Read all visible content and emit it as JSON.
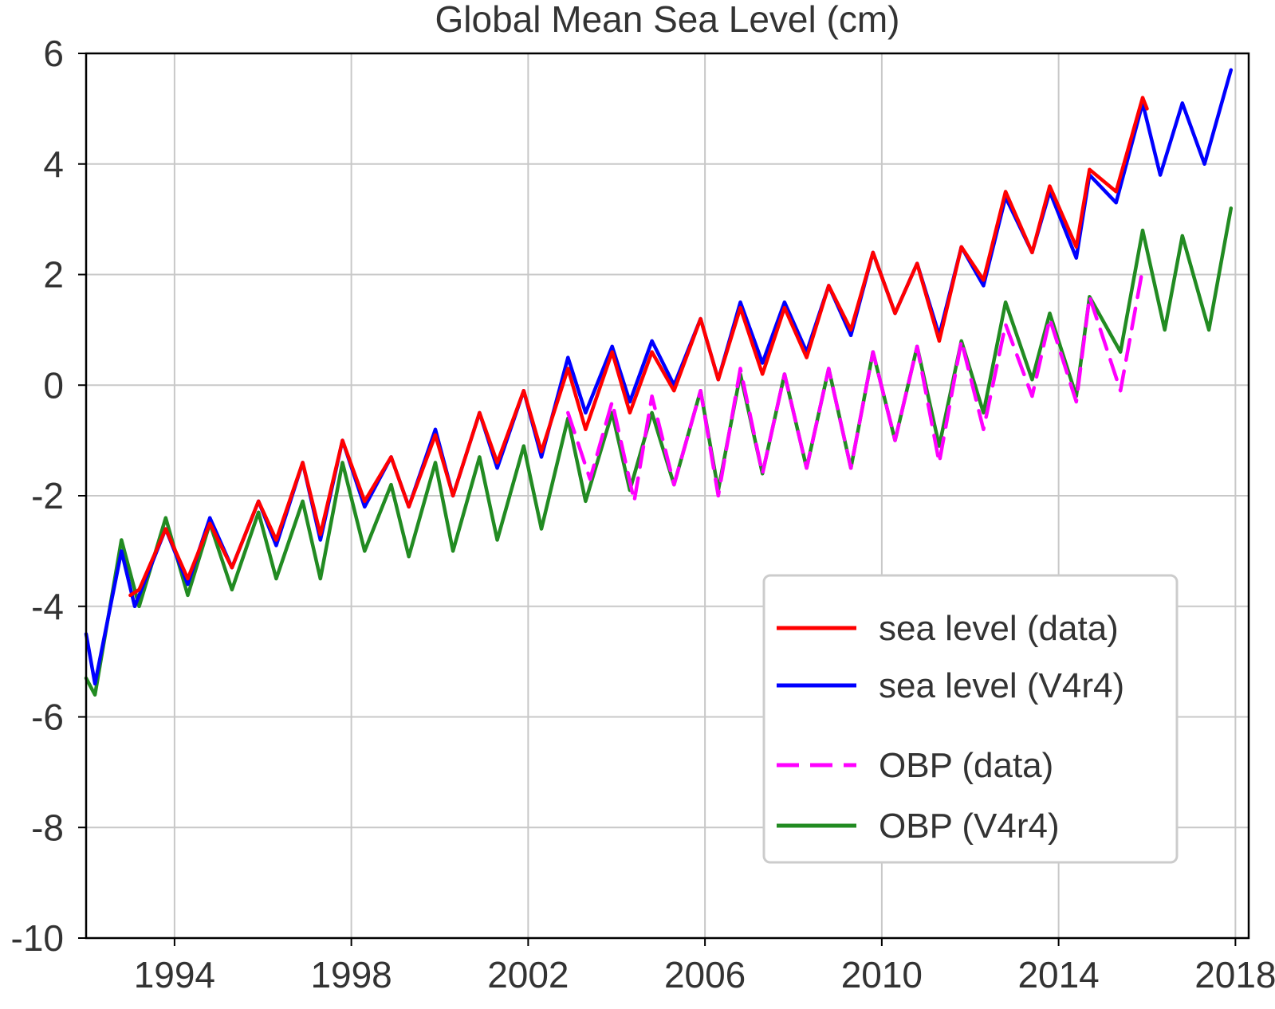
{
  "chart_data": {
    "type": "line",
    "title": "Global Mean Sea Level (cm)",
    "xlabel": "",
    "ylabel": "",
    "xlim": [
      1992.0,
      2018.3
    ],
    "ylim": [
      -10,
      6
    ],
    "x_ticks": [
      1994,
      1998,
      2002,
      2006,
      2010,
      2014,
      2018
    ],
    "x_tick_labels": [
      "1994",
      "1998",
      "2002",
      "2006",
      "2010",
      "2014",
      "2018"
    ],
    "y_ticks": [
      6,
      4,
      2,
      0,
      -2,
      -4,
      -6,
      -8,
      -10
    ],
    "y_tick_labels": [
      "6",
      "4",
      "2",
      "0",
      "-2",
      "-4",
      "-6",
      "-8",
      "-10"
    ],
    "grid": true,
    "legend_position": "lower-right",
    "series": [
      {
        "name": "sea level (data)",
        "color": "#ff0000",
        "dashed": false,
        "peaks": [
          [
            1993.0,
            -3.8
          ],
          [
            1993.8,
            -2.6
          ],
          [
            1994.8,
            -2.5
          ],
          [
            1995.9,
            -2.1
          ],
          [
            1996.9,
            -1.4
          ],
          [
            1997.8,
            -1.0
          ],
          [
            1998.9,
            -1.3
          ],
          [
            1999.9,
            -0.9
          ],
          [
            2000.9,
            -0.5
          ],
          [
            2001.9,
            -0.1
          ],
          [
            2002.9,
            0.3
          ],
          [
            2003.9,
            0.6
          ],
          [
            2004.8,
            0.6
          ],
          [
            2005.9,
            1.2
          ],
          [
            2006.8,
            1.4
          ],
          [
            2007.8,
            1.4
          ],
          [
            2008.8,
            1.8
          ],
          [
            2009.8,
            2.4
          ],
          [
            2010.8,
            2.2
          ],
          [
            2011.8,
            2.5
          ],
          [
            2012.8,
            3.5
          ],
          [
            2013.8,
            3.6
          ],
          [
            2014.7,
            3.9
          ],
          [
            2015.9,
            5.2
          ],
          [
            2016.0,
            5.0
          ]
        ],
        "troughs": [
          [
            1993.2,
            -3.7
          ],
          [
            1994.3,
            -3.5
          ],
          [
            1995.3,
            -3.3
          ],
          [
            1996.3,
            -2.8
          ],
          [
            1997.3,
            -2.7
          ],
          [
            1998.3,
            -2.1
          ],
          [
            1999.3,
            -2.2
          ],
          [
            2000.3,
            -2.0
          ],
          [
            2001.3,
            -1.4
          ],
          [
            2002.3,
            -1.2
          ],
          [
            2003.3,
            -0.8
          ],
          [
            2004.3,
            -0.5
          ],
          [
            2005.3,
            -0.1
          ],
          [
            2006.3,
            0.1
          ],
          [
            2007.3,
            0.2
          ],
          [
            2008.3,
            0.5
          ],
          [
            2009.3,
            1.0
          ],
          [
            2010.3,
            1.3
          ],
          [
            2011.3,
            0.8
          ],
          [
            2012.3,
            1.9
          ],
          [
            2013.4,
            2.4
          ],
          [
            2014.4,
            2.5
          ],
          [
            2015.3,
            3.5
          ]
        ]
      },
      {
        "name": "sea level (V4r4)",
        "color": "#0000ff",
        "dashed": false,
        "peaks": [
          [
            1992.0,
            -4.5
          ],
          [
            1992.8,
            -3.0
          ],
          [
            1993.8,
            -2.6
          ],
          [
            1994.8,
            -2.4
          ],
          [
            1995.9,
            -2.1
          ],
          [
            1996.9,
            -1.4
          ],
          [
            1997.8,
            -1.0
          ],
          [
            1998.9,
            -1.3
          ],
          [
            1999.9,
            -0.8
          ],
          [
            2000.9,
            -0.5
          ],
          [
            2001.9,
            -0.1
          ],
          [
            2002.9,
            0.5
          ],
          [
            2003.9,
            0.7
          ],
          [
            2004.8,
            0.8
          ],
          [
            2005.9,
            1.2
          ],
          [
            2006.8,
            1.5
          ],
          [
            2007.8,
            1.5
          ],
          [
            2008.8,
            1.8
          ],
          [
            2009.8,
            2.4
          ],
          [
            2010.8,
            2.2
          ],
          [
            2011.8,
            2.5
          ],
          [
            2012.8,
            3.4
          ],
          [
            2013.8,
            3.5
          ],
          [
            2014.7,
            3.8
          ],
          [
            2015.9,
            5.1
          ],
          [
            2016.8,
            5.1
          ],
          [
            2017.9,
            5.7
          ]
        ],
        "troughs": [
          [
            1992.2,
            -5.4
          ],
          [
            1993.1,
            -4.0
          ],
          [
            1994.3,
            -3.6
          ],
          [
            1995.3,
            -3.3
          ],
          [
            1996.3,
            -2.9
          ],
          [
            1997.3,
            -2.8
          ],
          [
            1998.3,
            -2.2
          ],
          [
            1999.3,
            -2.2
          ],
          [
            2000.3,
            -2.0
          ],
          [
            2001.3,
            -1.5
          ],
          [
            2002.3,
            -1.3
          ],
          [
            2003.3,
            -0.5
          ],
          [
            2004.3,
            -0.3
          ],
          [
            2005.3,
            0.0
          ],
          [
            2006.3,
            0.1
          ],
          [
            2007.3,
            0.4
          ],
          [
            2008.3,
            0.6
          ],
          [
            2009.3,
            0.9
          ],
          [
            2010.3,
            1.3
          ],
          [
            2011.3,
            0.9
          ],
          [
            2012.3,
            1.8
          ],
          [
            2013.4,
            2.4
          ],
          [
            2014.4,
            2.3
          ],
          [
            2015.3,
            3.3
          ],
          [
            2016.3,
            3.8
          ],
          [
            2017.3,
            4.0
          ]
        ]
      },
      {
        "name": "OBP (data)",
        "color": "#ff00ff",
        "dashed": true,
        "peaks": [
          [
            2002.9,
            -0.5
          ],
          [
            2003.9,
            -0.3
          ],
          [
            2004.8,
            -0.2
          ],
          [
            2005.9,
            -0.1
          ],
          [
            2006.8,
            0.3
          ],
          [
            2007.8,
            0.2
          ],
          [
            2008.8,
            0.3
          ],
          [
            2009.8,
            0.6
          ],
          [
            2010.8,
            0.7
          ],
          [
            2011.8,
            0.8
          ],
          [
            2012.8,
            1.1
          ],
          [
            2013.8,
            1.2
          ],
          [
            2014.7,
            1.6
          ],
          [
            2015.9,
            2.1
          ]
        ],
        "troughs": [
          [
            2003.4,
            -1.7
          ],
          [
            2004.4,
            -2.1
          ],
          [
            2005.3,
            -1.8
          ],
          [
            2006.3,
            -2.0
          ],
          [
            2007.3,
            -1.6
          ],
          [
            2008.3,
            -1.5
          ],
          [
            2009.3,
            -1.5
          ],
          [
            2010.3,
            -1.0
          ],
          [
            2011.3,
            -1.4
          ],
          [
            2012.3,
            -0.8
          ],
          [
            2013.4,
            -0.2
          ],
          [
            2014.4,
            -0.3
          ],
          [
            2015.4,
            -0.1
          ]
        ]
      },
      {
        "name": "OBP (V4r4)",
        "color": "#228b22",
        "dashed": false,
        "peaks": [
          [
            1992.0,
            -5.3
          ],
          [
            1992.8,
            -2.8
          ],
          [
            1993.8,
            -2.4
          ],
          [
            1994.8,
            -2.5
          ],
          [
            1995.9,
            -2.3
          ],
          [
            1996.9,
            -2.1
          ],
          [
            1997.8,
            -1.4
          ],
          [
            1998.9,
            -1.8
          ],
          [
            1999.9,
            -1.4
          ],
          [
            2000.9,
            -1.3
          ],
          [
            2001.9,
            -1.1
          ],
          [
            2002.9,
            -0.6
          ],
          [
            2003.9,
            -0.5
          ],
          [
            2004.8,
            -0.5
          ],
          [
            2005.9,
            -0.1
          ],
          [
            2006.8,
            0.2
          ],
          [
            2007.8,
            0.2
          ],
          [
            2008.8,
            0.3
          ],
          [
            2009.8,
            0.6
          ],
          [
            2010.8,
            0.7
          ],
          [
            2011.8,
            0.8
          ],
          [
            2012.8,
            1.5
          ],
          [
            2013.8,
            1.3
          ],
          [
            2014.7,
            1.6
          ],
          [
            2015.9,
            2.8
          ],
          [
            2016.8,
            2.7
          ],
          [
            2017.9,
            3.2
          ]
        ],
        "troughs": [
          [
            1992.2,
            -5.6
          ],
          [
            1993.2,
            -4.0
          ],
          [
            1994.3,
            -3.8
          ],
          [
            1995.3,
            -3.7
          ],
          [
            1996.3,
            -3.5
          ],
          [
            1997.3,
            -3.5
          ],
          [
            1998.3,
            -3.0
          ],
          [
            1999.3,
            -3.1
          ],
          [
            2000.3,
            -3.0
          ],
          [
            2001.3,
            -2.8
          ],
          [
            2002.3,
            -2.6
          ],
          [
            2003.3,
            -2.1
          ],
          [
            2004.3,
            -1.9
          ],
          [
            2005.3,
            -1.8
          ],
          [
            2006.3,
            -1.9
          ],
          [
            2007.3,
            -1.6
          ],
          [
            2008.3,
            -1.5
          ],
          [
            2009.3,
            -1.5
          ],
          [
            2010.3,
            -1.0
          ],
          [
            2011.3,
            -1.1
          ],
          [
            2012.3,
            -0.5
          ],
          [
            2013.4,
            0.1
          ],
          [
            2014.4,
            -0.2
          ],
          [
            2015.4,
            0.6
          ],
          [
            2016.4,
            1.0
          ],
          [
            2017.4,
            1.0
          ]
        ]
      }
    ]
  }
}
